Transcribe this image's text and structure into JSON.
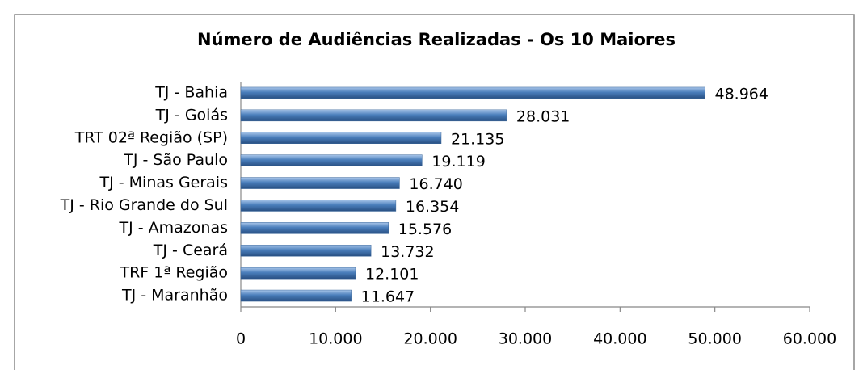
{
  "chart_data": {
    "type": "bar",
    "orientation": "horizontal",
    "title": "Número de Audiências Realizadas - Os 10 Maiores",
    "categories": [
      "TJ - Bahia",
      "TJ - Goiás",
      "TRT 02ª Região (SP)",
      "TJ - São Paulo",
      "TJ - Minas Gerais",
      "TJ - Rio Grande do Sul",
      "TJ - Amazonas",
      "TJ - Ceará",
      "TRF 1ª Região",
      "TJ - Maranhão"
    ],
    "values": [
      48964,
      28031,
      21135,
      19119,
      16740,
      16354,
      15576,
      13732,
      12101,
      11647
    ],
    "value_labels": [
      "48.964",
      "28.031",
      "21.135",
      "19.119",
      "16.740",
      "16.354",
      "15.576",
      "13.732",
      "12.101",
      "11.647"
    ],
    "color": "#4a7ebb",
    "xlim": [
      0,
      60000
    ],
    "xticks": [
      0,
      {
        "value": 10000,
        "label": "10.000"
      },
      {
        "value": 20000,
        "label": "20.000"
      },
      {
        "value": 30000,
        "label": "30.000"
      },
      {
        "value": 40000,
        "label": "40.000"
      },
      {
        "value": 50000,
        "label": "50.000"
      },
      {
        "value": 60000,
        "label": "60.000"
      }
    ],
    "grid": false
  }
}
